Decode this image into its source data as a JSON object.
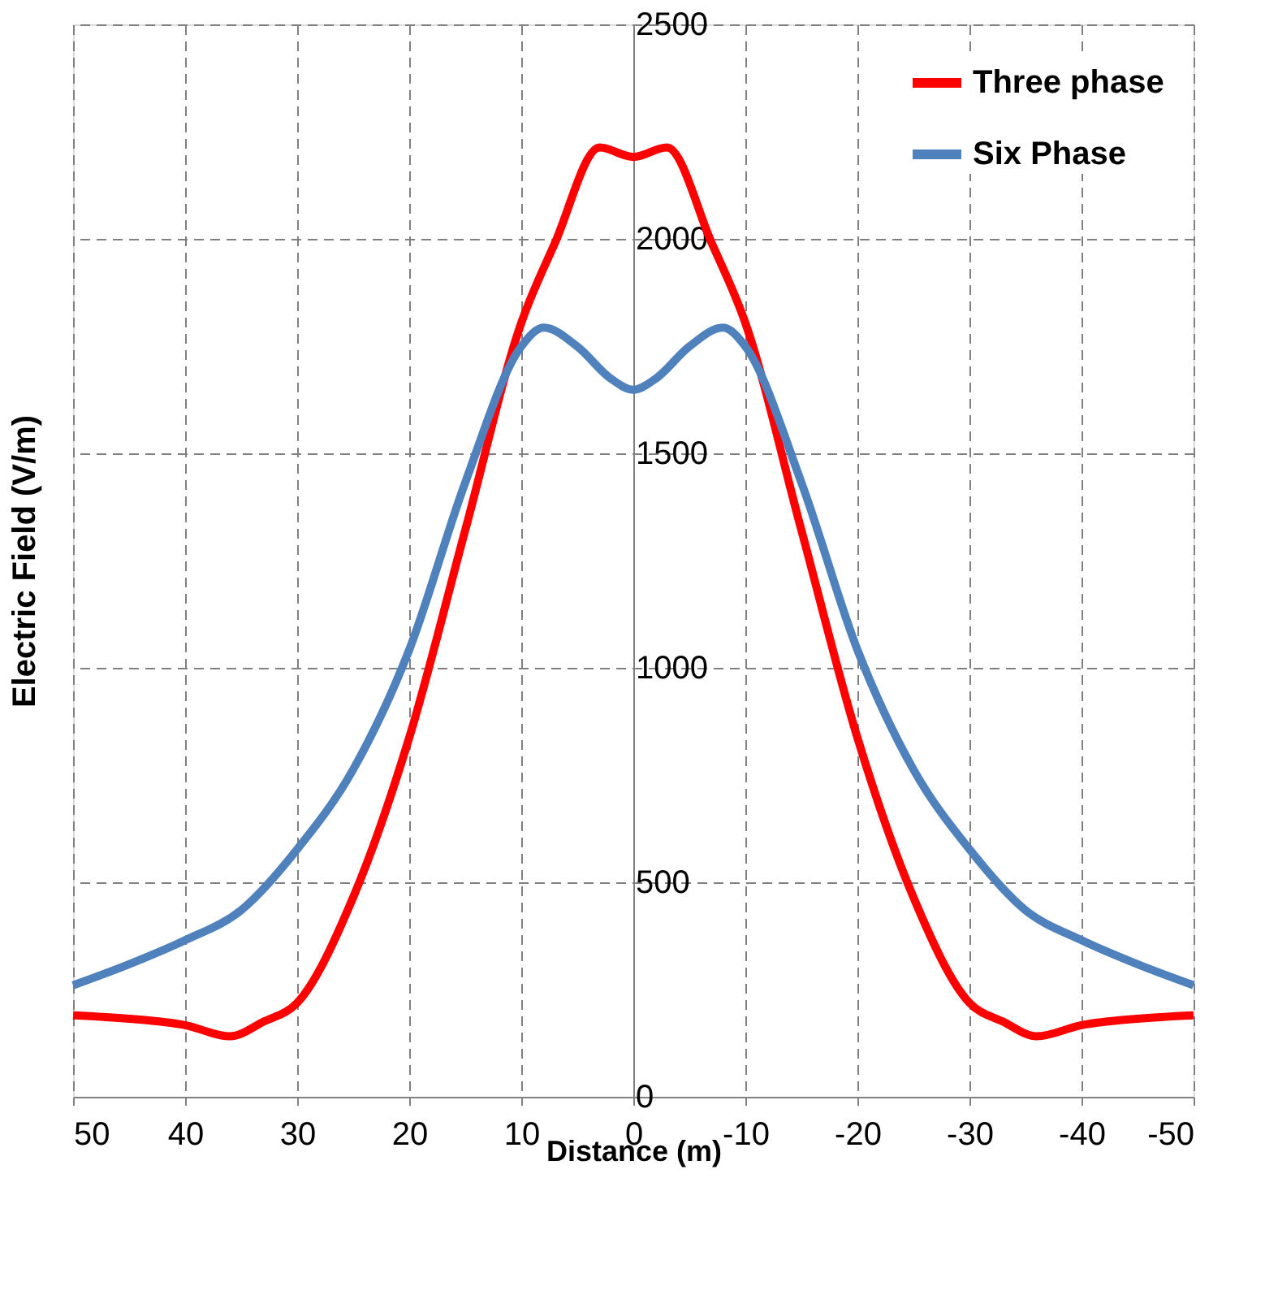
{
  "chart_data": {
    "type": "line",
    "xlabel": "Distance (m)",
    "ylabel": "Electric Field (V/m)",
    "xlim": [
      50,
      -50
    ],
    "xticks": [
      50,
      40,
      30,
      20,
      10,
      0,
      -10,
      -20,
      -30,
      -40,
      -50
    ],
    "ylim": [
      0,
      2500
    ],
    "yticks": [
      0,
      500,
      1000,
      1500,
      2000,
      2500
    ],
    "grid": true,
    "legend": "top right",
    "line_style": "solid",
    "marker": "none",
    "series": [
      {
        "name": "Three phase",
        "color": "#ff0000",
        "x": [
          50,
          45,
          40,
          36,
          33,
          30,
          25,
          20,
          15,
          10,
          7,
          3,
          0,
          -3,
          -7,
          -10,
          -15,
          -20,
          -25,
          -30,
          -33,
          -36,
          -40,
          -45,
          -50
        ],
        "values": [
          190,
          182,
          167,
          141,
          175,
          219,
          465,
          837,
          1321,
          1804,
          1990,
          2213,
          2191,
          2213,
          1990,
          1804,
          1321,
          837,
          465,
          219,
          175,
          141,
          167,
          182,
          190
        ]
      },
      {
        "name": "Six Phase",
        "color": "#4f81bd",
        "x": [
          50,
          45,
          40,
          35,
          30,
          25,
          20,
          15,
          10,
          8,
          5,
          2,
          0,
          -2,
          -5,
          -8,
          -10,
          -15,
          -20,
          -25,
          -30,
          -35,
          -40,
          -45,
          -50
        ],
        "values": [
          260,
          309,
          365,
          435,
          577,
          763,
          1042,
          1432,
          1749,
          1793,
          1749,
          1674,
          1648,
          1674,
          1749,
          1793,
          1749,
          1432,
          1042,
          763,
          577,
          435,
          365,
          309,
          260
        ]
      }
    ]
  }
}
